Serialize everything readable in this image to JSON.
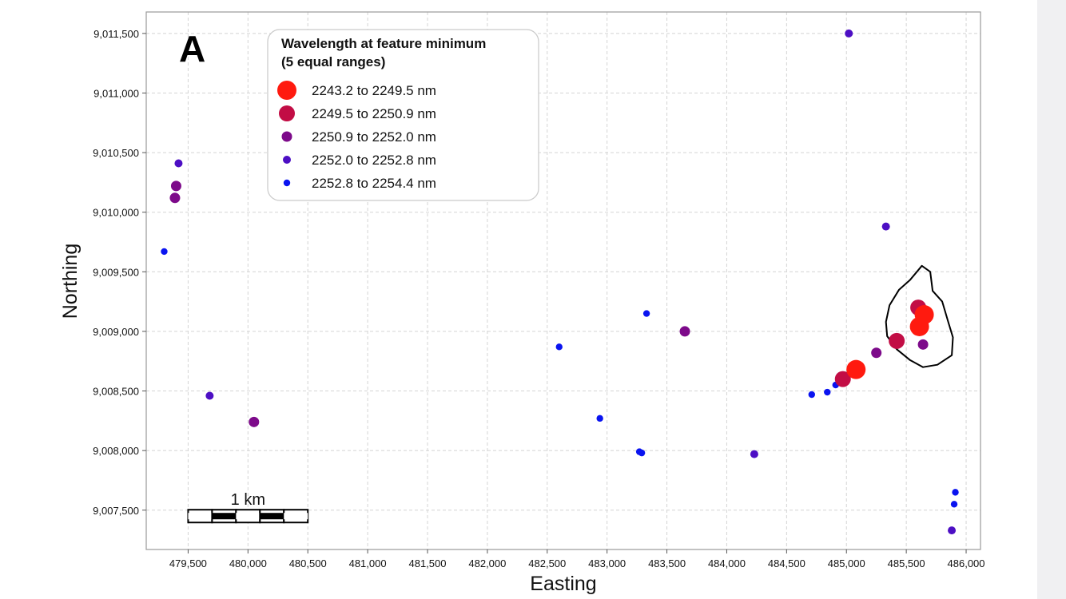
{
  "chart_data": {
    "type": "scatter",
    "panel_label": "A",
    "xlabel": "Easting",
    "ylabel": "Northing",
    "xlim": [
      479150,
      486120
    ],
    "ylim": [
      9007170,
      9011680
    ],
    "xticks": [
      479500,
      480000,
      480500,
      481000,
      481500,
      482000,
      482500,
      483000,
      483500,
      484000,
      484500,
      485000,
      485500,
      486000
    ],
    "xtick_labels": [
      "479,500",
      "480,000",
      "480,500",
      "481,000",
      "481,500",
      "482,000",
      "482,500",
      "483,000",
      "483,500",
      "484,000",
      "484,500",
      "485,000",
      "485,500",
      "486,000"
    ],
    "yticks": [
      9007500,
      9008000,
      9008500,
      9009000,
      9009500,
      9010000,
      9010500,
      9011000,
      9011500
    ],
    "ytick_labels": [
      "9,007,500",
      "9,008,000",
      "9,008,500",
      "9,009,000",
      "9,009,500",
      "9,010,000",
      "9,010,500",
      "9,011,000",
      "9,011,500"
    ],
    "grid": true,
    "legend": {
      "placement": "top-left",
      "title_line1": "Wavelength at feature minimum",
      "title_line2": "(5 equal ranges)"
    },
    "classes": [
      {
        "label": "2243.2 to 2249.5 nm",
        "color": "#ff1a0f",
        "size": 12
      },
      {
        "label": "2249.5 to 2250.9 nm",
        "color": "#c20d45",
        "size": 10
      },
      {
        "label": "2250.9 to 2252.0 nm",
        "color": "#7d0a8a",
        "size": 6.5
      },
      {
        "label": "2252.0 to 2252.8 nm",
        "color": "#4d0fc4",
        "size": 5
      },
      {
        "label": "2252.8 to 2254.4 nm",
        "color": "#0a14f0",
        "size": 4.2
      }
    ],
    "points": [
      {
        "x": 485020,
        "y": 9011500,
        "c": 3
      },
      {
        "x": 479420,
        "y": 9010410,
        "c": 3
      },
      {
        "x": 479400,
        "y": 9010220,
        "c": 2
      },
      {
        "x": 479390,
        "y": 9010120,
        "c": 2
      },
      {
        "x": 479300,
        "y": 9009670,
        "c": 4
      },
      {
        "x": 485330,
        "y": 9009880,
        "c": 3
      },
      {
        "x": 479680,
        "y": 9008460,
        "c": 3
      },
      {
        "x": 480050,
        "y": 9008240,
        "c": 2
      },
      {
        "x": 482600,
        "y": 9008870,
        "c": 4
      },
      {
        "x": 482940,
        "y": 9008270,
        "c": 4
      },
      {
        "x": 483330,
        "y": 9009150,
        "c": 4
      },
      {
        "x": 483650,
        "y": 9009000,
        "c": 2
      },
      {
        "x": 483270,
        "y": 9007990,
        "c": 4
      },
      {
        "x": 483290,
        "y": 9007980,
        "c": 4
      },
      {
        "x": 484230,
        "y": 9007970,
        "c": 3
      },
      {
        "x": 484710,
        "y": 9008470,
        "c": 4
      },
      {
        "x": 484840,
        "y": 9008490,
        "c": 4
      },
      {
        "x": 484910,
        "y": 9008550,
        "c": 4
      },
      {
        "x": 485250,
        "y": 9008820,
        "c": 2
      },
      {
        "x": 485080,
        "y": 9008680,
        "c": 0
      },
      {
        "x": 484970,
        "y": 9008600,
        "c": 1
      },
      {
        "x": 485050,
        "y": 9008670,
        "c": 3
      },
      {
        "x": 485420,
        "y": 9008920,
        "c": 1
      },
      {
        "x": 485610,
        "y": 9009040,
        "c": 0
      },
      {
        "x": 485650,
        "y": 9009140,
        "c": 0
      },
      {
        "x": 485600,
        "y": 9009200,
        "c": 1
      },
      {
        "x": 485620,
        "y": 9009120,
        "c": 3
      },
      {
        "x": 485640,
        "y": 9008890,
        "c": 2
      },
      {
        "x": 485910,
        "y": 9007650,
        "c": 4
      },
      {
        "x": 485900,
        "y": 9007550,
        "c": 4
      },
      {
        "x": 485880,
        "y": 9007330,
        "c": 3
      }
    ],
    "outline_polygon": [
      [
        485630,
        9009550
      ],
      [
        485530,
        9009430
      ],
      [
        485440,
        9009350
      ],
      [
        485360,
        9009220
      ],
      [
        485330,
        9009080
      ],
      [
        485340,
        9008960
      ],
      [
        485420,
        9008850
      ],
      [
        485530,
        9008760
      ],
      [
        485640,
        9008700
      ],
      [
        485760,
        9008720
      ],
      [
        485880,
        9008800
      ],
      [
        485890,
        9008950
      ],
      [
        485850,
        9009080
      ],
      [
        485800,
        9009250
      ],
      [
        485720,
        9009340
      ],
      [
        485700,
        9009500
      ]
    ],
    "scale_bar": {
      "label": "1 km",
      "start": 479500,
      "end": 480500,
      "y": 9007450
    }
  }
}
